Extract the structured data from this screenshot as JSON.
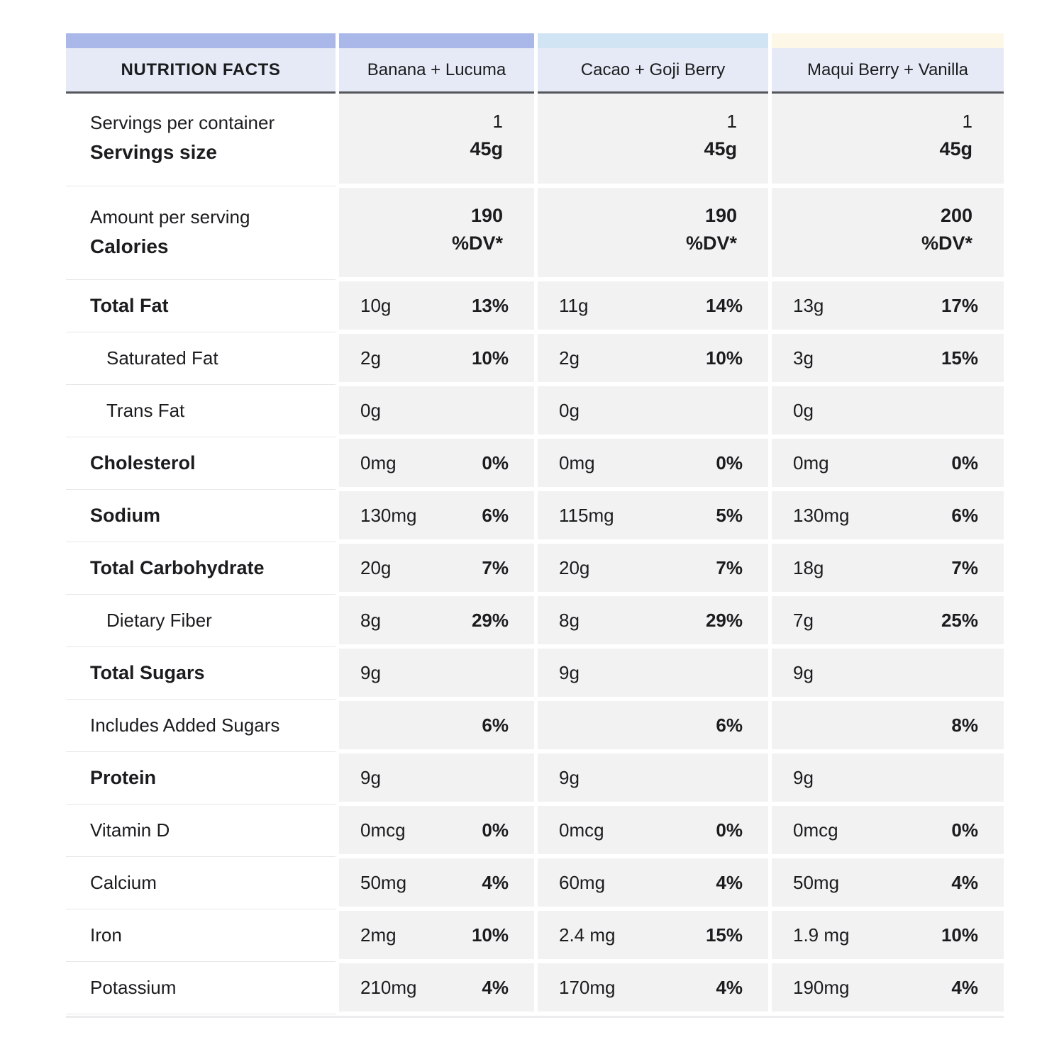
{
  "header": {
    "title": "NUTRITION FACTS",
    "products": [
      "Banana + Lucuma",
      "Cacao + Goji Berry",
      "Maqui Berry + Vanilla"
    ],
    "bar_colors": [
      "#a9b8e8",
      "#a9b8e8",
      "#d1e4f3",
      "#fdf7e8"
    ],
    "header_bg": "#e6eaf6",
    "header_border": "#54565c",
    "data_cell_bg": "#f2f2f2"
  },
  "serving_info": {
    "label_line1": "Servings per container",
    "label_line2": "Servings size",
    "values": [
      {
        "line1": "1",
        "line2": "45g"
      },
      {
        "line1": "1",
        "line2": "45g"
      },
      {
        "line1": "1",
        "line2": "45g"
      }
    ]
  },
  "calories_info": {
    "label_line1": "Amount per serving",
    "label_line2": "Calories",
    "values": [
      {
        "line1": "190",
        "line2": "%DV*"
      },
      {
        "line1": "190",
        "line2": "%DV*"
      },
      {
        "line1": "200",
        "line2": "%DV*"
      }
    ]
  },
  "rows": [
    {
      "label": "Total Fat",
      "bold": true,
      "indent": false,
      "cells": [
        {
          "amount": "10g",
          "dv": "13%"
        },
        {
          "amount": "11g",
          "dv": "14%"
        },
        {
          "amount": "13g",
          "dv": "17%"
        }
      ]
    },
    {
      "label": "Saturated Fat",
      "bold": false,
      "indent": true,
      "cells": [
        {
          "amount": "2g",
          "dv": "10%"
        },
        {
          "amount": "2g",
          "dv": "10%"
        },
        {
          "amount": "3g",
          "dv": "15%"
        }
      ]
    },
    {
      "label": "Trans Fat",
      "bold": false,
      "indent": true,
      "cells": [
        {
          "amount": "0g",
          "dv": ""
        },
        {
          "amount": "0g",
          "dv": ""
        },
        {
          "amount": "0g",
          "dv": ""
        }
      ]
    },
    {
      "label": "Cholesterol",
      "bold": true,
      "indent": false,
      "cells": [
        {
          "amount": "0mg",
          "dv": "0%"
        },
        {
          "amount": "0mg",
          "dv": "0%"
        },
        {
          "amount": "0mg",
          "dv": "0%"
        }
      ]
    },
    {
      "label": "Sodium",
      "bold": true,
      "indent": false,
      "cells": [
        {
          "amount": "130mg",
          "dv": "6%"
        },
        {
          "amount": "115mg",
          "dv": "5%"
        },
        {
          "amount": "130mg",
          "dv": "6%"
        }
      ]
    },
    {
      "label": "Total Carbohydrate",
      "bold": true,
      "indent": false,
      "cells": [
        {
          "amount": "20g",
          "dv": "7%"
        },
        {
          "amount": "20g",
          "dv": "7%"
        },
        {
          "amount": "18g",
          "dv": "7%"
        }
      ]
    },
    {
      "label": "Dietary Fiber",
      "bold": false,
      "indent": true,
      "cells": [
        {
          "amount": "8g",
          "dv": "29%"
        },
        {
          "amount": "8g",
          "dv": "29%"
        },
        {
          "amount": "7g",
          "dv": "25%"
        }
      ]
    },
    {
      "label": "Total Sugars",
      "bold": true,
      "indent": false,
      "cells": [
        {
          "amount": "9g",
          "dv": ""
        },
        {
          "amount": "9g",
          "dv": ""
        },
        {
          "amount": "9g",
          "dv": ""
        }
      ]
    },
    {
      "label": "Includes Added Sugars",
      "bold": false,
      "indent": false,
      "cells": [
        {
          "amount": "",
          "dv": "6%"
        },
        {
          "amount": "",
          "dv": "6%"
        },
        {
          "amount": "",
          "dv": "8%"
        }
      ]
    },
    {
      "label": "Protein",
      "bold": true,
      "indent": false,
      "cells": [
        {
          "amount": "9g",
          "dv": ""
        },
        {
          "amount": "9g",
          "dv": ""
        },
        {
          "amount": "9g",
          "dv": ""
        }
      ]
    },
    {
      "label": "Vitamin D",
      "bold": false,
      "indent": false,
      "cells": [
        {
          "amount": "0mcg",
          "dv": "0%"
        },
        {
          "amount": "0mcg",
          "dv": "0%"
        },
        {
          "amount": "0mcg",
          "dv": "0%"
        }
      ]
    },
    {
      "label": "Calcium",
      "bold": false,
      "indent": false,
      "cells": [
        {
          "amount": "50mg",
          "dv": "4%"
        },
        {
          "amount": "60mg",
          "dv": "4%"
        },
        {
          "amount": "50mg",
          "dv": "4%"
        }
      ]
    },
    {
      "label": "Iron",
      "bold": false,
      "indent": false,
      "cells": [
        {
          "amount": "2mg",
          "dv": "10%"
        },
        {
          "amount": "2.4 mg",
          "dv": "15%"
        },
        {
          "amount": "1.9 mg",
          "dv": "10%"
        }
      ]
    },
    {
      "label": "Potassium",
      "bold": false,
      "indent": false,
      "cells": [
        {
          "amount": "210mg",
          "dv": "4%"
        },
        {
          "amount": "170mg",
          "dv": "4%"
        },
        {
          "amount": "190mg",
          "dv": "4%"
        }
      ]
    }
  ]
}
